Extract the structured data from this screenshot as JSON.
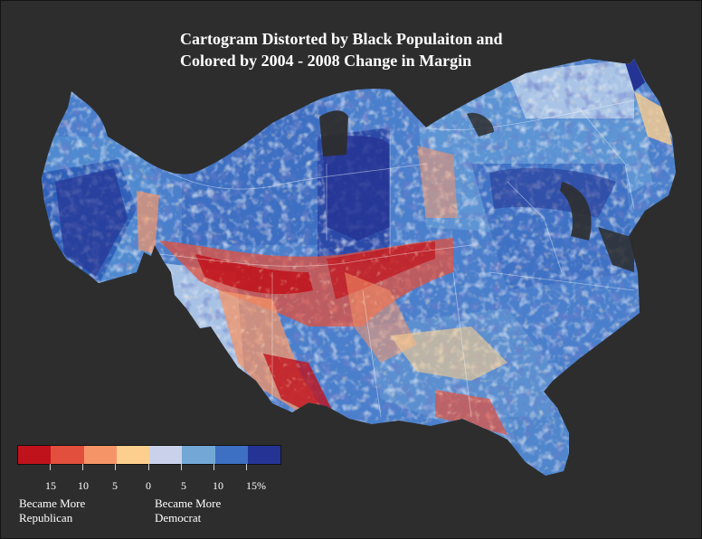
{
  "title": {
    "line1": "Cartogram Distorted by Black Populaiton and",
    "line2": "Colored by 2004 - 2008 Change in Margin"
  },
  "colors": {
    "background": "#2d2d2d",
    "scale": [
      "#c0121b",
      "#e2503d",
      "#f59467",
      "#fccf8e",
      "#c9d2ea",
      "#73a8d6",
      "#3d6fc2",
      "#253494"
    ]
  },
  "legend": {
    "tick_labels": [
      "15",
      "10",
      "5",
      "0",
      "5",
      "10",
      "15%"
    ],
    "caption_left_line1": "Became More",
    "caption_left_line2": "Republican",
    "caption_right_line1": "Became More",
    "caption_right_line2": "Democrat"
  }
}
